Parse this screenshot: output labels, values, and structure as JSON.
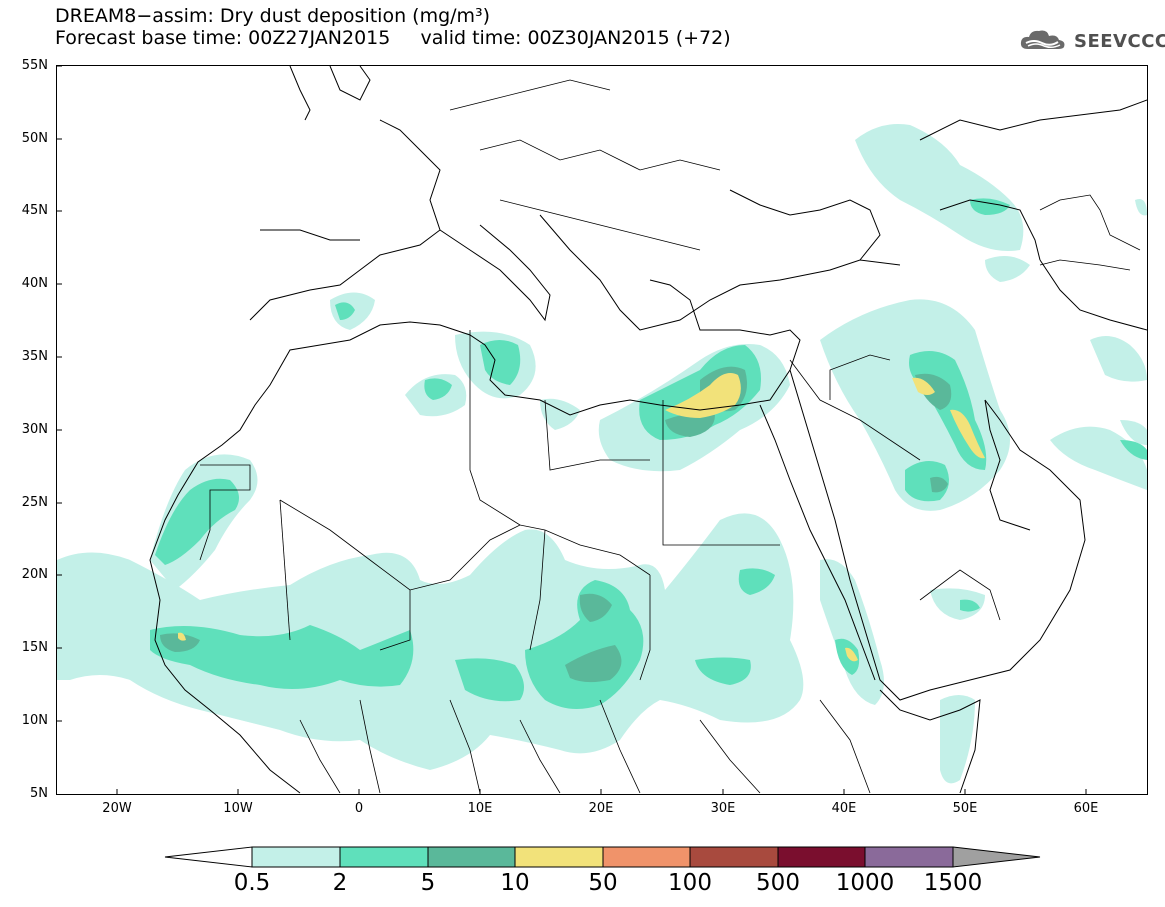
{
  "title": {
    "line1": "DREAM8−assim: Dry dust deposition (mg/m³)",
    "line2": "Forecast base time: 00Z27JAN2015     valid time: 00Z30JAN2015 (+72)"
  },
  "logo": {
    "text": "SEEVCCC",
    "icon": "cloud-icon"
  },
  "map": {
    "lat_ticks": [
      "55N",
      "50N",
      "45N",
      "40N",
      "35N",
      "30N",
      "25N",
      "20N",
      "15N",
      "10N",
      "5N"
    ],
    "lon_ticks": [
      "20W",
      "10W",
      "0",
      "10E",
      "20E",
      "30E",
      "40E",
      "50E",
      "60E"
    ],
    "lon_range": [
      -25,
      65
    ],
    "lat_range": [
      5,
      55
    ]
  },
  "colorbar": {
    "levels": [
      "0.5",
      "2",
      "5",
      "10",
      "50",
      "100",
      "500",
      "1000",
      "1500"
    ],
    "colors": [
      "#c3f0e8",
      "#5fe0bb",
      "#5ab89a",
      "#f2e27a",
      "#f0936a",
      "#a84a3e",
      "#7a0e2e",
      "#8a6a9a",
      "#a0a0a0"
    ]
  }
}
